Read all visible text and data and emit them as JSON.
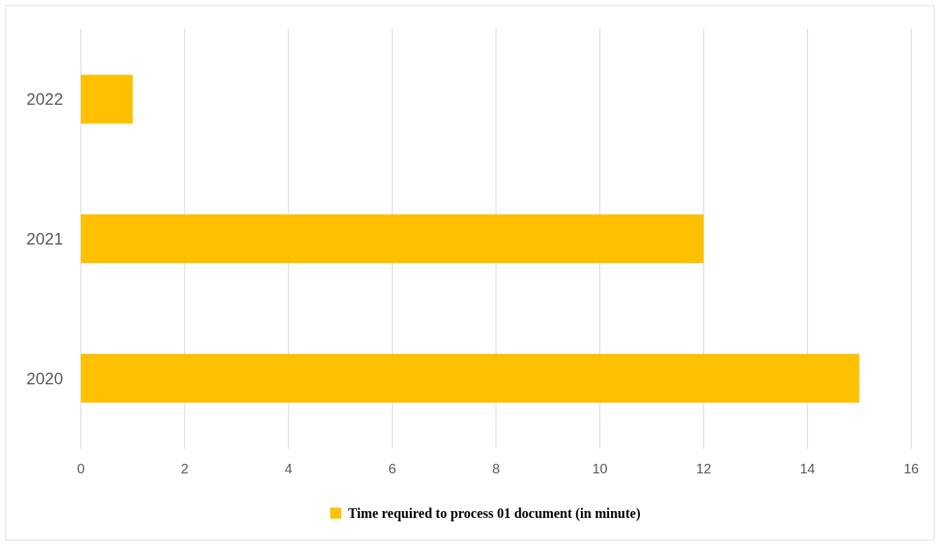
{
  "chart_data": {
    "type": "bar",
    "orientation": "horizontal",
    "categories": [
      "2022",
      "2021",
      "2020"
    ],
    "series": [
      {
        "name": "Time required to process 01 document (in minute)",
        "color": "#ffc000",
        "values": [
          1,
          12,
          15
        ]
      }
    ],
    "xlim": [
      0,
      16
    ],
    "xticks": [
      0,
      2,
      4,
      6,
      8,
      10,
      12,
      14,
      16
    ],
    "grid": "x",
    "legend": "bottom"
  }
}
